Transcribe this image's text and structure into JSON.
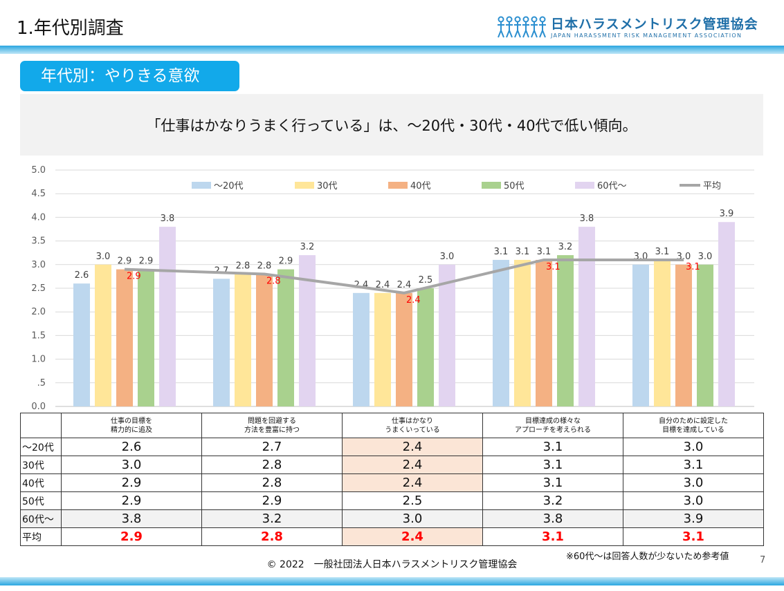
{
  "header": {
    "title": "1.年代別調査",
    "org_name": "日本ハラスメントリスク管理協会",
    "org_name_en": "JAPAN HARASSMENT RISK MANAGEMENT ASSOCIATION"
  },
  "section_label": "年代別：やりきる意欲",
  "summary": "「仕事はかなりうまく行っている」は、～20代・30代・40代で低い傾向。",
  "colors": {
    "accent": "#12a9ea",
    "highlight_cell": "#fbe5d6",
    "avg_text": "#ff0000"
  },
  "chart_data": {
    "type": "bar",
    "ylim": [
      0,
      5
    ],
    "yticks": [
      "0.0",
      ".5",
      "1.0",
      "1.5",
      "2.0",
      "2.5",
      "3.0",
      "3.5",
      "4.0",
      "4.5",
      "5.0"
    ],
    "categories": [
      "仕事の目標を精力的に追及",
      "問題を回避する方法を豊富に持つ",
      "仕事はかなりうまくいっている",
      "目標達成の様々なアプローチを考えられる",
      "自分のために設定した目標を達成している"
    ],
    "category_lines": [
      [
        "仕事の目標を",
        "精力的に追及"
      ],
      [
        "問題を回避する",
        "方法を豊富に持つ"
      ],
      [
        "仕事はかなり",
        "うまくいっている"
      ],
      [
        "目標達成の様々な",
        "アプローチを考えられる"
      ],
      [
        "自分のために設定した",
        "目標を達成している"
      ]
    ],
    "series": [
      {
        "name": "～20代",
        "color": "#bdd7ee",
        "values": [
          2.6,
          2.7,
          2.4,
          3.1,
          3.0
        ]
      },
      {
        "name": "30代",
        "color": "#ffe699",
        "values": [
          3.0,
          2.8,
          2.4,
          3.1,
          3.1
        ]
      },
      {
        "name": "40代",
        "color": "#f4b183",
        "values": [
          2.9,
          2.8,
          2.4,
          3.1,
          3.0
        ]
      },
      {
        "name": "50代",
        "color": "#a9d18e",
        "values": [
          2.9,
          2.9,
          2.5,
          3.2,
          3.0
        ]
      },
      {
        "name": "60代～",
        "color": "#e2d4f0",
        "values": [
          3.8,
          3.2,
          3.0,
          3.8,
          3.9
        ]
      }
    ],
    "average": {
      "name": "平均",
      "color": "#a6a6a6",
      "values": [
        2.9,
        2.8,
        2.4,
        3.1,
        3.1
      ]
    },
    "legend_position": "top"
  },
  "table": {
    "row_labels": [
      "～20代",
      "30代",
      "40代",
      "50代",
      "60代～",
      "平均"
    ]
  },
  "footnote": "※60代～は回答人数が少ないため参考値",
  "copyright": "© 2022　一般社団法人日本ハラスメントリスク管理協会",
  "page_number": "7"
}
